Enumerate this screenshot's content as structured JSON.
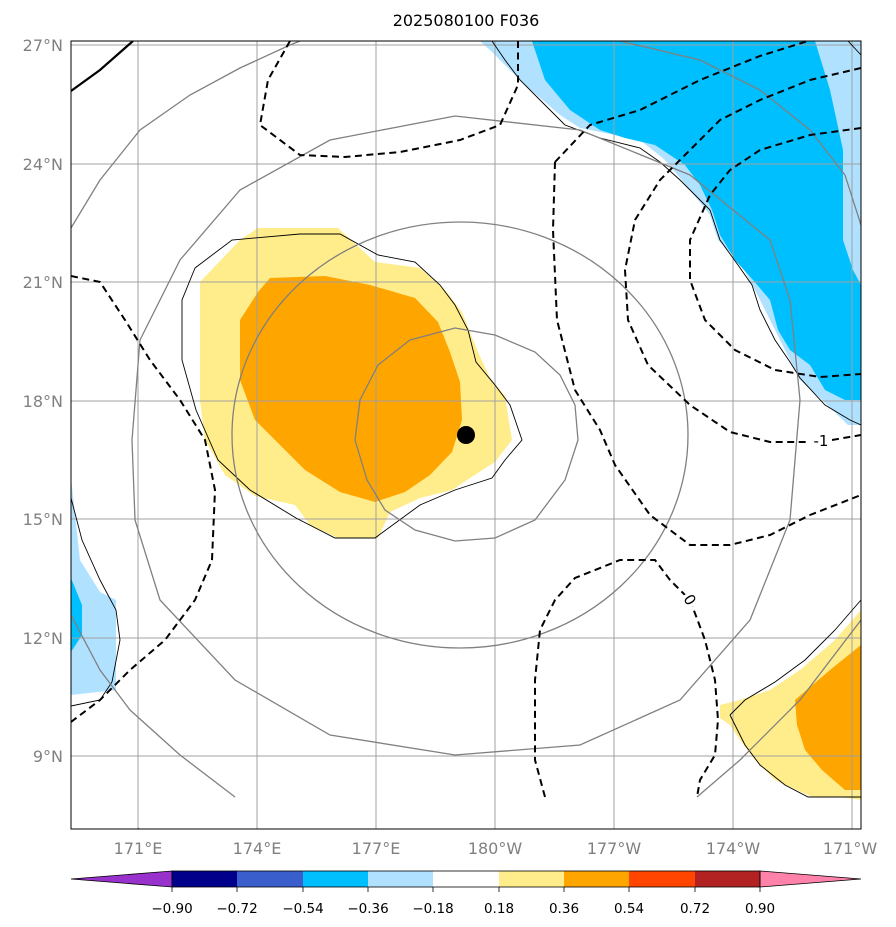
{
  "title": "2025080100 F036",
  "map": {
    "lon_ticks": [
      "171°E",
      "174°E",
      "177°E",
      "180°W",
      "177°W",
      "174°W",
      "171°W"
    ],
    "lat_ticks": [
      "27°N",
      "24°N",
      "21°N",
      "18°N",
      "15°N",
      "12°N",
      "9°N"
    ],
    "contour_labels": [
      "-1",
      "0"
    ],
    "storm_center": {
      "lon": 179.3,
      "lat": 17.2
    }
  },
  "colorbar": {
    "ticks": [
      "−0.90",
      "−0.72",
      "−0.54",
      "−0.36",
      "−0.18",
      "0.18",
      "0.36",
      "0.54",
      "0.72",
      "0.90"
    ],
    "colors": [
      "#9932CC",
      "#00008B",
      "#3A5FCD",
      "#00BFFF",
      "#B0E2FF",
      "#FFFFFF",
      "#FFEC8B",
      "#FFA500",
      "#FF4500",
      "#B22222",
      "#FF82AB"
    ]
  }
}
